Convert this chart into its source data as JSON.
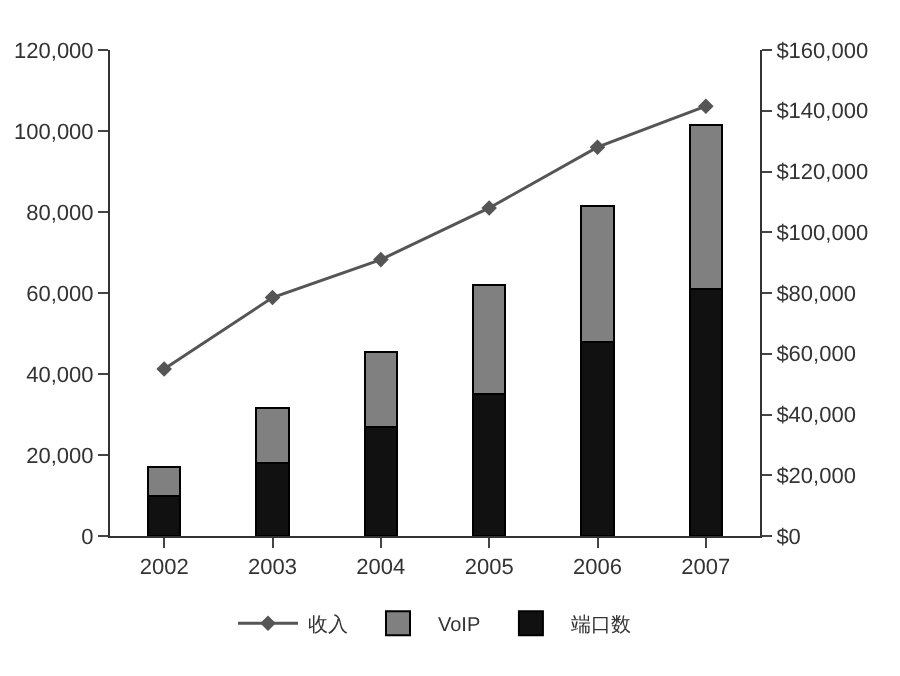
{
  "chart_data": {
    "type": "bar",
    "stacked": true,
    "categories": [
      "2002",
      "2003",
      "2004",
      "2005",
      "2006",
      "2007"
    ],
    "series": [
      {
        "name": "端口数",
        "color": "#111111",
        "values": [
          10000,
          18000,
          27000,
          35000,
          48000,
          61000
        ]
      },
      {
        "name": "VoIP",
        "color": "#808080",
        "values": [
          7000,
          13500,
          18500,
          27000,
          33500,
          40500
        ]
      },
      {
        "name": "收入",
        "type": "line",
        "axis": "y2",
        "color": "#555555",
        "marker": "diamond",
        "values": [
          55000,
          78500,
          91000,
          108000,
          128000,
          141500
        ]
      }
    ],
    "ylim": [
      0,
      120000
    ],
    "yticks": [
      {
        "value": 0,
        "label": "0"
      },
      {
        "value": 20000,
        "label": "20,000"
      },
      {
        "value": 40000,
        "label": "40,000"
      },
      {
        "value": 60000,
        "label": "60,000"
      },
      {
        "value": 80000,
        "label": "80,000"
      },
      {
        "value": 100000,
        "label": "100,000"
      },
      {
        "value": 120000,
        "label": "120,000"
      }
    ],
    "y2lim": [
      0,
      160000
    ],
    "y2ticks": [
      {
        "value": 0,
        "label": "$0"
      },
      {
        "value": 20000,
        "label": "$20,000"
      },
      {
        "value": 40000,
        "label": "$40,000"
      },
      {
        "value": 60000,
        "label": "$60,000"
      },
      {
        "value": 80000,
        "label": "$80,000"
      },
      {
        "value": 100000,
        "label": "$100,000"
      },
      {
        "value": 120000,
        "label": "$120,000"
      },
      {
        "value": 140000,
        "label": "$140,000"
      },
      {
        "value": 160000,
        "label": "$160,000"
      }
    ],
    "grid": false,
    "legend": "bottom"
  }
}
